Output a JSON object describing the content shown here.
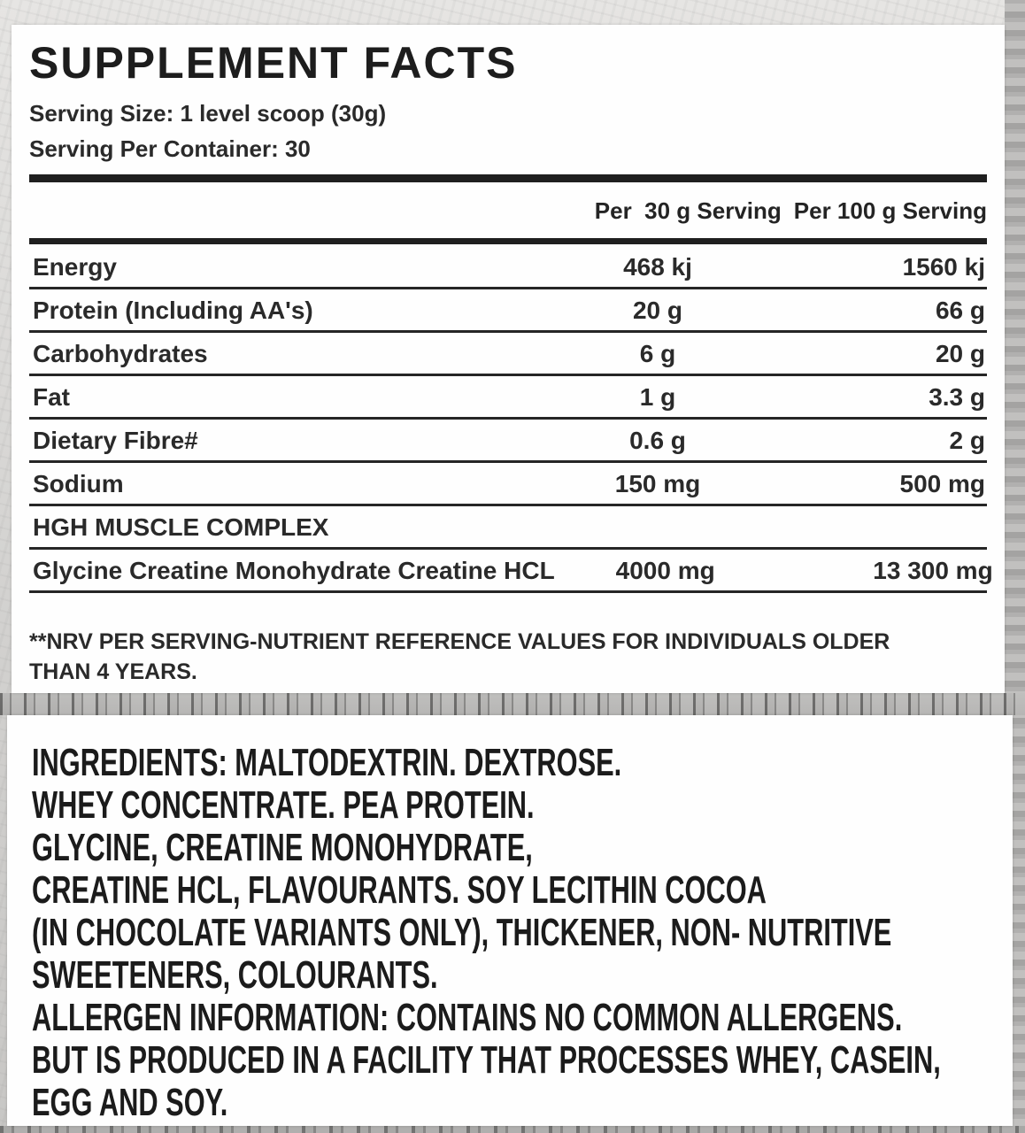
{
  "colors": {
    "panel_background": "#fefefe",
    "text": "#2a2a2a",
    "rule": "#262626",
    "page_background": "#d2d1cf"
  },
  "facts": {
    "title": "SUPPLEMENT FACTS",
    "serving_size": "Serving Size: 1 level scoop (30g)",
    "servings_per_container": "Serving Per Container: 30",
    "columns": {
      "per30_label": "Per  30 g Serving",
      "per100_label": "Per 100 g Serving"
    },
    "rows": [
      {
        "name": "Energy",
        "per30": "468 kj",
        "per100": "1560 kj"
      },
      {
        "name": "Protein (Including AA's)",
        "per30": "20 g",
        "per100": "66 g"
      },
      {
        "name": "Carbohydrates",
        "per30": "6 g",
        "per100": "20 g"
      },
      {
        "name": "Fat",
        "per30": "1 g",
        "per100": "3.3 g"
      },
      {
        "name": "Dietary Fibre#",
        "per30": "0.6 g",
        "per100": "2 g"
      },
      {
        "name": "Sodium",
        "per30": "150 mg",
        "per100": "500 mg"
      },
      {
        "name": "HGH MUSCLE COMPLEX",
        "per30": "",
        "per100": ""
      },
      {
        "name": "Glycine Creatine Monohydrate Creatine HCL",
        "per30": "4000 mg",
        "per100": "13 300 mg"
      }
    ],
    "footnote": "**NRV PER SERVING-NUTRIENT REFERENCE VALUES FOR INDIVIDUALS OLDER THAN 4 YEARS."
  },
  "ingredients": {
    "lines": [
      "INGREDIENTS: MALTODEXTRIN. DEXTROSE.",
      "WHEY CONCENTRATE. PEA PROTEIN.",
      "GLYCINE, CREATINE MONOHYDRATE,",
      "CREATINE HCL, FLAVOURANTS. SOY LECITHIN COCOA",
      "(IN CHOCOLATE VARIANTS ONLY), THICKENER, NON- NUTRITIVE",
      "SWEETENERS, COLOURANTS.",
      "ALLERGEN INFORMATION: CONTAINS NO COMMON ALLERGENS.",
      "BUT IS PRODUCED IN A FACILITY THAT PROCESSES WHEY, CASEIN,",
      "EGG AND SOY."
    ]
  }
}
